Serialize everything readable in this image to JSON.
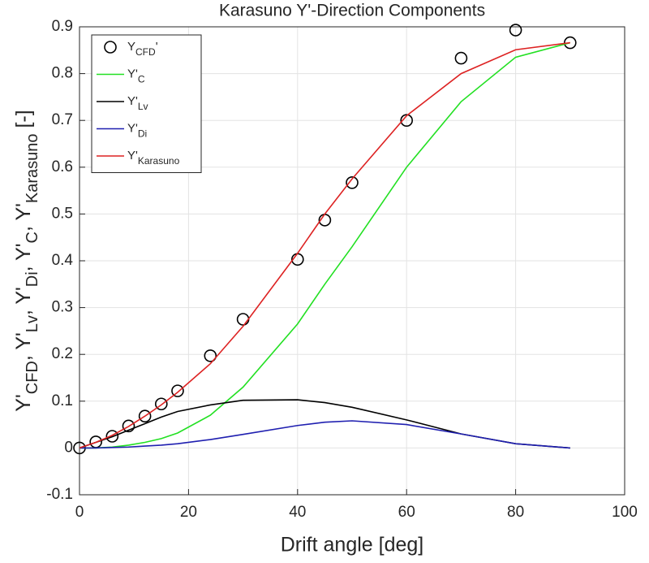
{
  "chart_data": {
    "type": "line",
    "title": "Karasuno Y'-Direction Components",
    "xlabel": "Drift angle [deg]",
    "ylabel": [
      {
        "text": "Y'"
      },
      {
        "sub": "CFD"
      },
      {
        "text": ", Y'"
      },
      {
        "sub": "Lv"
      },
      {
        "text": ", Y'"
      },
      {
        "sub": "Di"
      },
      {
        "text": ", Y'"
      },
      {
        "sub": "C"
      },
      {
        "text": ", Y'"
      },
      {
        "sub": "Karasuno"
      },
      {
        "text": " [-]"
      }
    ],
    "x": [
      0,
      3,
      6,
      9,
      12,
      15,
      18,
      24,
      30,
      40,
      45,
      50,
      60,
      70,
      80,
      90
    ],
    "series": [
      {
        "name": {
          "text": "Y",
          "sub": "CFD",
          "after": "'"
        },
        "marker": "o",
        "color": "#000000",
        "values": [
          0,
          0.013,
          0.025,
          0.047,
          0.068,
          0.094,
          0.122,
          0.197,
          0.275,
          0.403,
          0.487,
          0.567,
          0.7,
          0.833,
          0.893,
          0.866
        ]
      },
      {
        "name": {
          "text": "Y'",
          "sub": "C"
        },
        "color": "#22e022",
        "values": [
          0,
          0,
          0.002,
          0.006,
          0.012,
          0.02,
          0.032,
          0.07,
          0.13,
          0.265,
          0.35,
          0.43,
          0.6,
          0.74,
          0.835,
          0.866
        ]
      },
      {
        "name": {
          "text": "Y'",
          "sub": "Lv"
        },
        "color": "#000000",
        "values": [
          0,
          0.012,
          0.024,
          0.038,
          0.052,
          0.066,
          0.078,
          0.092,
          0.102,
          0.103,
          0.097,
          0.087,
          0.06,
          0.03,
          0.009,
          0
        ]
      },
      {
        "name": {
          "text": "Y'",
          "sub": "Di"
        },
        "color": "#1f1fb0",
        "values": [
          0,
          0,
          0.001,
          0.002,
          0.004,
          0.006,
          0.009,
          0.018,
          0.029,
          0.048,
          0.055,
          0.058,
          0.05,
          0.03,
          0.009,
          0
        ]
      },
      {
        "name": {
          "text": "Y'",
          "sub": "Karasuno"
        },
        "color": "#dd2222",
        "values": [
          0,
          0.012,
          0.027,
          0.046,
          0.068,
          0.092,
          0.119,
          0.18,
          0.26,
          0.416,
          0.5,
          0.575,
          0.71,
          0.8,
          0.851,
          0.866
        ]
      }
    ],
    "xlim": [
      0,
      100
    ],
    "xticks": [
      0,
      20,
      40,
      60,
      80,
      100
    ],
    "ylim": [
      -0.1,
      0.9
    ],
    "yticks": [
      -0.1,
      0,
      0.1,
      0.2,
      0.3,
      0.4,
      0.5,
      0.6,
      0.7,
      0.8,
      0.9
    ],
    "grid": true,
    "legend": "top-left"
  }
}
